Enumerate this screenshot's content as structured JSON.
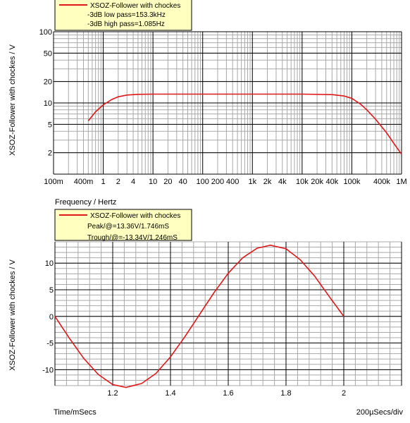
{
  "colors": {
    "trace": "#e01818",
    "legend_bg": "#ffffc0",
    "major_grid": "#000000",
    "minor_grid": "#a8a8a8",
    "background": "#ffffff"
  },
  "chart_data": [
    {
      "type": "line",
      "x_scale": "log",
      "y_scale": "log",
      "xlabel": "Frequency / Hertz",
      "ylabel": "XSOZ-Follower with chockes / V",
      "xlim": [
        0.1,
        1000000
      ],
      "ylim": [
        1,
        100
      ],
      "x_tick_labels": [
        {
          "value": 0.1,
          "label": "100m"
        },
        {
          "value": 0.4,
          "label": "400m"
        },
        {
          "value": 1,
          "label": "1"
        },
        {
          "value": 2,
          "label": "2"
        },
        {
          "value": 4,
          "label": "4"
        },
        {
          "value": 10,
          "label": "10"
        },
        {
          "value": 20,
          "label": "20"
        },
        {
          "value": 40,
          "label": "40"
        },
        {
          "value": 100,
          "label": "100"
        },
        {
          "value": 200,
          "label": "200"
        },
        {
          "value": 400,
          "label": "400"
        },
        {
          "value": 1000,
          "label": "1k"
        },
        {
          "value": 2000,
          "label": "2k"
        },
        {
          "value": 4000,
          "label": "4k"
        },
        {
          "value": 10000,
          "label": "10k"
        },
        {
          "value": 20000,
          "label": "20k"
        },
        {
          "value": 40000,
          "label": "40k"
        },
        {
          "value": 100000,
          "label": "100k"
        },
        {
          "value": 400000,
          "label": "400k"
        },
        {
          "value": 1000000,
          "label": "1M"
        }
      ],
      "y_tick_labels": [
        {
          "value": 2,
          "label": "2"
        },
        {
          "value": 5,
          "label": "5"
        },
        {
          "value": 10,
          "label": "10"
        },
        {
          "value": 20,
          "label": "20"
        },
        {
          "value": 50,
          "label": "50"
        },
        {
          "value": 100,
          "label": "100"
        }
      ],
      "legend": {
        "series_name": "XSOZ-Follower with chockes",
        "lines": [
          "-3dB low pass=153.3kHz",
          "-3dB high pass=1.085Hz"
        ]
      },
      "series": [
        {
          "name": "XSOZ-Follower with chockes",
          "x": [
            0.5,
            0.7,
            1,
            1.5,
            2,
            3,
            5,
            10,
            100,
            1000,
            10000,
            40000,
            70000,
            100000,
            150000,
            200000,
            300000,
            500000,
            700000,
            1000000
          ],
          "y": [
            5.6,
            7.5,
            9.4,
            11.2,
            12.2,
            12.9,
            13.2,
            13.3,
            13.3,
            13.3,
            13.3,
            13.1,
            12.5,
            11.6,
            9.6,
            8.0,
            5.9,
            3.8,
            2.7,
            1.9
          ]
        }
      ]
    },
    {
      "type": "line",
      "xlabel": "Time/mSecs",
      "ylabel": "XSOZ-Follower with chockes / V",
      "x_div_label": "200µSecs/div",
      "xlim": [
        1.0,
        2.2
      ],
      "ylim": [
        -13,
        14
      ],
      "x_tick_labels": [
        "1.2",
        "1.4",
        "1.6",
        "1.8",
        "2"
      ],
      "x_tick_values": [
        1.2,
        1.4,
        1.6,
        1.8,
        2.0
      ],
      "y_tick_labels": [
        "10",
        "5",
        "0",
        "-5",
        "-10"
      ],
      "y_tick_values": [
        10,
        5,
        0,
        -5,
        -10
      ],
      "legend": {
        "series_name": "XSOZ-Follower with chockes",
        "lines": [
          "Peak/@=13.36V/1.746mS",
          "Trough/@=-13.34V/1.246mS"
        ]
      },
      "series": [
        {
          "name": "XSOZ-Follower with chockes",
          "x": [
            1.0,
            1.05,
            1.1,
            1.15,
            1.2,
            1.246,
            1.3,
            1.35,
            1.4,
            1.45,
            1.5,
            1.55,
            1.6,
            1.65,
            1.7,
            1.746,
            1.8,
            1.85,
            1.9,
            1.95,
            2.0
          ],
          "y": [
            0,
            -4.1,
            -7.9,
            -10.9,
            -12.8,
            -13.34,
            -12.6,
            -10.7,
            -7.6,
            -3.8,
            0.3,
            4.4,
            8.1,
            11.0,
            12.8,
            13.36,
            12.7,
            10.6,
            7.5,
            3.7,
            0
          ]
        }
      ]
    }
  ]
}
